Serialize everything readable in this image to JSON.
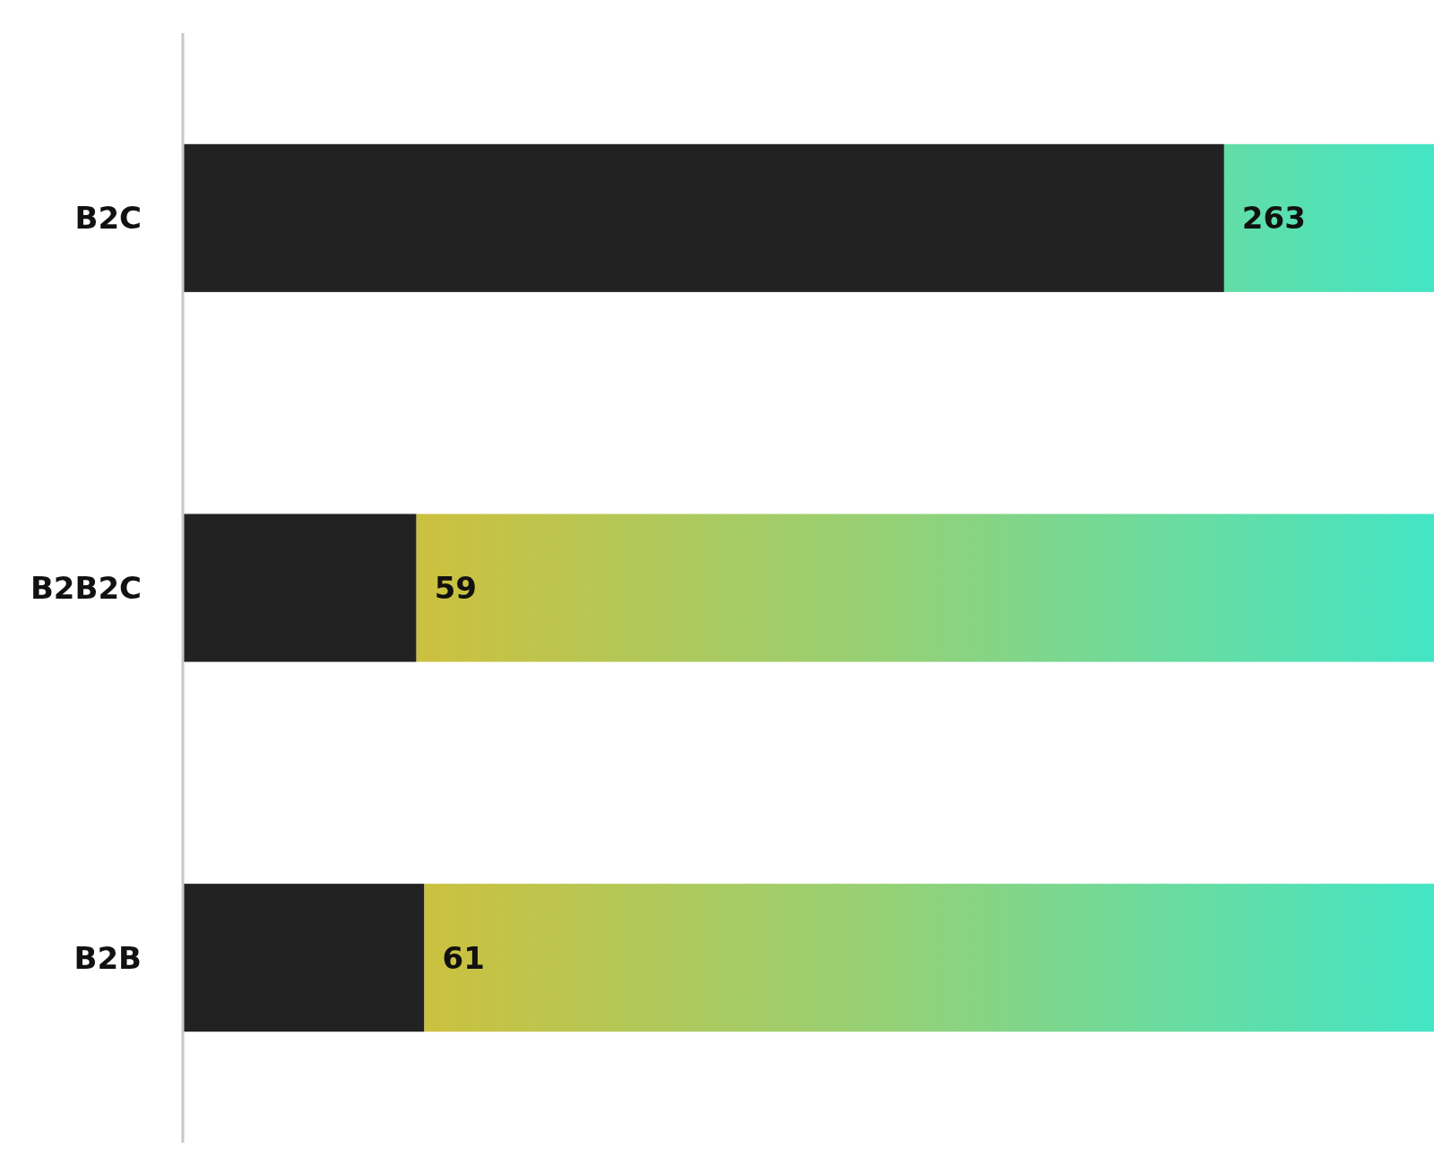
{
  "chart_data": {
    "type": "bar",
    "orientation": "horizontal",
    "stacked": true,
    "categories": [
      "B2C",
      "B2B2C",
      "B2B"
    ],
    "xlim": [
      0,
      316
    ],
    "tick_labels": "y",
    "series": [
      {
        "color": "#222222",
        "values": [
          263,
          59,
          61
        ],
        "value_labels": [
          "263",
          "59",
          "61"
        ]
      },
      {
        "color": "#43e5c5",
        "values": [
          53,
          257,
          255
        ]
      }
    ]
  }
}
